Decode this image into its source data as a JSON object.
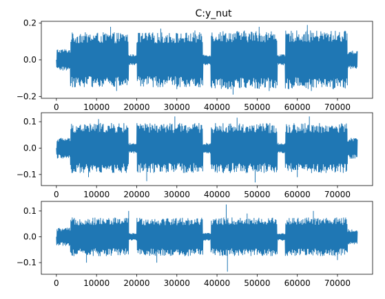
{
  "chart_data": [
    {
      "type": "line",
      "title": "C:y_nut",
      "xlabel": "",
      "ylabel": "",
      "xlim": [
        -3750,
        78750
      ],
      "ylim": [
        -0.21,
        0.21
      ],
      "xticks": [
        0,
        10000,
        20000,
        30000,
        40000,
        50000,
        60000,
        70000
      ],
      "yticks": [
        -0.2,
        0.0,
        0.2
      ],
      "ytick_labels": [
        "−0.2",
        "0.0",
        "0.2"
      ],
      "grid": false,
      "color": "#1f77b4",
      "n_samples": 75000,
      "segments": [
        {
          "x_start": 0,
          "x_end": 3500,
          "amplitude": 0.06
        },
        {
          "x_start": 3500,
          "x_end": 18000,
          "amplitude": 0.15
        },
        {
          "x_start": 18000,
          "x_end": 20000,
          "amplitude": 0.03
        },
        {
          "x_start": 20000,
          "x_end": 36500,
          "amplitude": 0.15
        },
        {
          "x_start": 36500,
          "x_end": 38500,
          "amplitude": 0.03
        },
        {
          "x_start": 38500,
          "x_end": 55000,
          "amplitude": 0.16
        },
        {
          "x_start": 55000,
          "x_end": 57000,
          "amplitude": 0.03
        },
        {
          "x_start": 57000,
          "x_end": 72500,
          "amplitude": 0.16
        },
        {
          "x_start": 72500,
          "x_end": 75000,
          "amplitude": 0.05
        }
      ],
      "extremes": [
        {
          "x": 6000,
          "y": 0.14
        },
        {
          "x": 13500,
          "y": 0.18
        },
        {
          "x": 15000,
          "y": -0.17
        },
        {
          "x": 26000,
          "y": 0.17
        },
        {
          "x": 30000,
          "y": -0.16
        },
        {
          "x": 34500,
          "y": 0.16
        },
        {
          "x": 44000,
          "y": -0.19
        },
        {
          "x": 50500,
          "y": 0.18
        },
        {
          "x": 53000,
          "y": -0.17
        },
        {
          "x": 62500,
          "y": 0.19
        },
        {
          "x": 63500,
          "y": -0.17
        },
        {
          "x": 69000,
          "y": -0.16
        }
      ]
    },
    {
      "type": "line",
      "title": "",
      "xlabel": "",
      "ylabel": "",
      "xlim": [
        -3750,
        78750
      ],
      "ylim": [
        -0.142,
        0.134
      ],
      "xticks": [
        0,
        10000,
        20000,
        30000,
        40000,
        50000,
        60000,
        70000
      ],
      "yticks": [
        -0.1,
        0.0,
        0.1
      ],
      "ytick_labels": [
        "−0.1",
        "0.0",
        "0.1"
      ],
      "grid": false,
      "color": "#1f77b4",
      "n_samples": 75000,
      "segments": [
        {
          "x_start": 0,
          "x_end": 3500,
          "amplitude": 0.04
        },
        {
          "x_start": 3500,
          "x_end": 18000,
          "amplitude": 0.095
        },
        {
          "x_start": 18000,
          "x_end": 20000,
          "amplitude": 0.02
        },
        {
          "x_start": 20000,
          "x_end": 36500,
          "amplitude": 0.095
        },
        {
          "x_start": 36500,
          "x_end": 38500,
          "amplitude": 0.02
        },
        {
          "x_start": 38500,
          "x_end": 55000,
          "amplitude": 0.095
        },
        {
          "x_start": 55000,
          "x_end": 57000,
          "amplitude": 0.02
        },
        {
          "x_start": 57000,
          "x_end": 72500,
          "amplitude": 0.095
        },
        {
          "x_start": 72500,
          "x_end": 75000,
          "amplitude": 0.04
        }
      ],
      "extremes": [
        {
          "x": 10500,
          "y": 0.11
        },
        {
          "x": 29500,
          "y": 0.12
        },
        {
          "x": 22500,
          "y": -0.125
        },
        {
          "x": 45000,
          "y": 0.115
        },
        {
          "x": 49500,
          "y": -0.13
        },
        {
          "x": 63000,
          "y": 0.12
        },
        {
          "x": 60000,
          "y": -0.11
        },
        {
          "x": 8000,
          "y": -0.11
        }
      ]
    },
    {
      "type": "line",
      "title": "",
      "xlabel": "",
      "ylabel": "",
      "xlim": [
        -3750,
        78750
      ],
      "ylim": [
        -0.145,
        0.137
      ],
      "xticks": [
        0,
        10000,
        20000,
        30000,
        40000,
        50000,
        60000,
        70000
      ],
      "yticks": [
        -0.1,
        0.0,
        0.1
      ],
      "ytick_labels": [
        "−0.1",
        "0.0",
        "0.1"
      ],
      "grid": false,
      "color": "#1f77b4",
      "n_samples": 75000,
      "segments": [
        {
          "x_start": 0,
          "x_end": 3500,
          "amplitude": 0.035
        },
        {
          "x_start": 3500,
          "x_end": 18000,
          "amplitude": 0.075
        },
        {
          "x_start": 18000,
          "x_end": 20000,
          "amplitude": 0.015
        },
        {
          "x_start": 20000,
          "x_end": 36500,
          "amplitude": 0.075
        },
        {
          "x_start": 36500,
          "x_end": 38500,
          "amplitude": 0.015
        },
        {
          "x_start": 38500,
          "x_end": 55000,
          "amplitude": 0.075
        },
        {
          "x_start": 55000,
          "x_end": 57000,
          "amplitude": 0.015
        },
        {
          "x_start": 57000,
          "x_end": 72500,
          "amplitude": 0.075
        },
        {
          "x_start": 72500,
          "x_end": 75000,
          "amplitude": 0.03
        }
      ],
      "extremes": [
        {
          "x": 42300,
          "y": 0.125
        },
        {
          "x": 42600,
          "y": -0.135
        },
        {
          "x": 18000,
          "y": 0.1
        },
        {
          "x": 7500,
          "y": -0.1
        },
        {
          "x": 25000,
          "y": -0.1
        },
        {
          "x": 47500,
          "y": 0.09
        },
        {
          "x": 64000,
          "y": 0.1
        },
        {
          "x": 70000,
          "y": -0.09
        }
      ]
    }
  ]
}
